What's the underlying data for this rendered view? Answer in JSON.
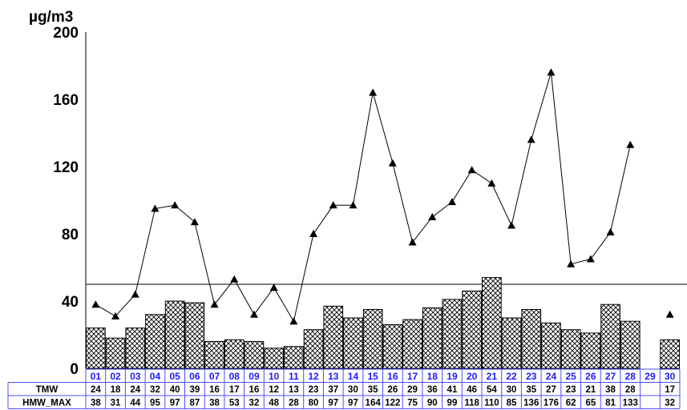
{
  "chart_data": {
    "type": "bar+line",
    "unit_label": "µg/m3",
    "ylim": [
      0,
      200
    ],
    "y_ticks": [
      "0",
      "40",
      "80",
      "120",
      "160",
      "200"
    ],
    "y_tick_values": [
      0,
      40,
      80,
      120,
      160,
      200
    ],
    "reference_line": 50,
    "categories": [
      "01",
      "02",
      "03",
      "04",
      "05",
      "06",
      "07",
      "08",
      "09",
      "10",
      "11",
      "12",
      "13",
      "14",
      "15",
      "16",
      "17",
      "18",
      "19",
      "20",
      "21",
      "22",
      "23",
      "24",
      "25",
      "26",
      "27",
      "28",
      "29",
      "30"
    ],
    "series": [
      {
        "name": "TMW",
        "type": "bar",
        "values": [
          24,
          18,
          24,
          32,
          40,
          39,
          16,
          17,
          16,
          12,
          13,
          23,
          37,
          30,
          35,
          26,
          29,
          36,
          41,
          46,
          54,
          30,
          35,
          27,
          23,
          21,
          38,
          28,
          null,
          17
        ],
        "labels": [
          "24",
          "18",
          "24",
          "32",
          "40",
          "39",
          "16",
          "17",
          "16",
          "12",
          "13",
          "23",
          "37",
          "30",
          "35",
          "26",
          "29",
          "36",
          "41",
          "46",
          "54",
          "30",
          "35",
          "27",
          "23",
          "21",
          "38",
          "28",
          "",
          "17"
        ]
      },
      {
        "name": "HMW_MAX",
        "type": "line",
        "values": [
          38,
          31,
          44,
          95,
          97,
          87,
          38,
          53,
          32,
          48,
          28,
          80,
          97,
          97,
          164,
          122,
          75,
          90,
          99,
          118,
          110,
          85,
          136,
          176,
          62,
          65,
          81,
          133,
          null,
          32
        ],
        "labels": [
          "38",
          "31",
          "44",
          "95",
          "97",
          "87",
          "38",
          "53",
          "32",
          "48",
          "28",
          "80",
          "97",
          "97",
          "164",
          "122",
          "75",
          "90",
          "99",
          "118",
          "110",
          "85",
          "136",
          "176",
          "62",
          "65",
          "81",
          "133",
          "",
          "32"
        ]
      }
    ],
    "colors": {
      "bar_fill": "#ffffff",
      "hatch": "#000000",
      "line": "#000000",
      "day_labels": "#1a1aff",
      "table_border": "#4d4dff"
    }
  }
}
